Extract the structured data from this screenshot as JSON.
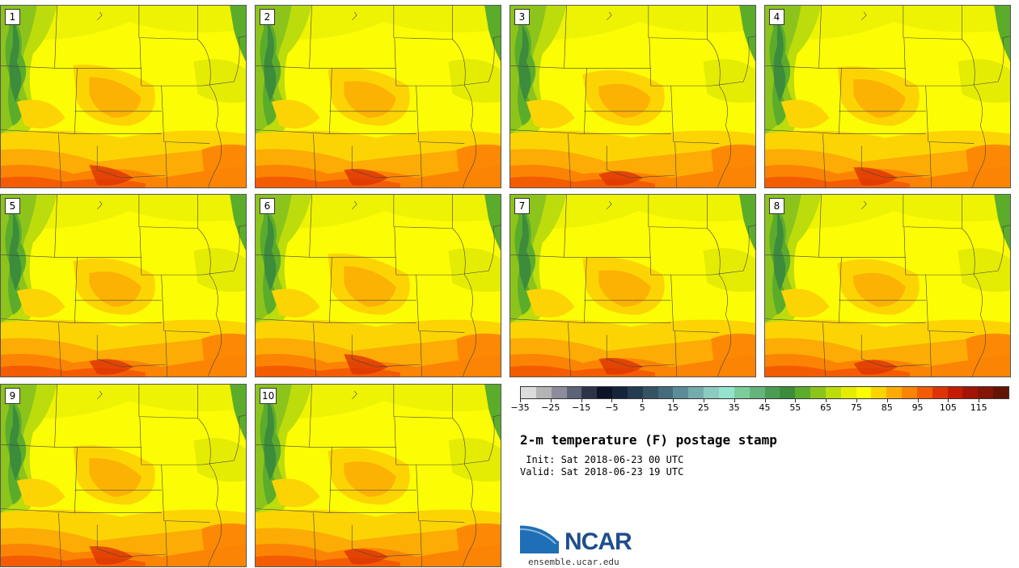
{
  "panels": [
    {
      "label": "1",
      "variant": 0
    },
    {
      "label": "2",
      "variant": 1
    },
    {
      "label": "3",
      "variant": 2
    },
    {
      "label": "4",
      "variant": 3
    },
    {
      "label": "5",
      "variant": 4
    },
    {
      "label": "6",
      "variant": 5
    },
    {
      "label": "7",
      "variant": 6
    },
    {
      "label": "8",
      "variant": 7
    },
    {
      "label": "9",
      "variant": 8
    },
    {
      "label": "10",
      "variant": 9
    }
  ],
  "colorbar": {
    "colors": [
      "#dcdcdc",
      "#b4b4b4",
      "#8c8c9c",
      "#5c6478",
      "#2c3448",
      "#0c1428",
      "#14243a",
      "#243c50",
      "#345464",
      "#446c7c",
      "#5c8c98",
      "#74acac",
      "#8cccc0",
      "#94e4cc",
      "#7ccc9c",
      "#64b47c",
      "#4c9c54",
      "#3c8c3c",
      "#5cac2c",
      "#8cc41c",
      "#bcdc0c",
      "#e4ec04",
      "#fcfc04",
      "#fcd404",
      "#fcac04",
      "#fc8404",
      "#f45c04",
      "#dc3404",
      "#c41c04",
      "#a41404",
      "#841404",
      "#641404"
    ],
    "tick_labels": [
      "−35",
      "−25",
      "−15",
      "−5",
      "5",
      "15",
      "25",
      "35",
      "45",
      "55",
      "65",
      "75",
      "85",
      "95",
      "105",
      "115"
    ]
  },
  "title": "2-m temperature (F) postage stamp",
  "init": " Init: Sat 2018-06-23 00 UTC",
  "valid": "Valid: Sat 2018-06-23 19 UTC",
  "logo": {
    "text": "NCAR",
    "url": "ensemble.ucar.edu"
  }
}
